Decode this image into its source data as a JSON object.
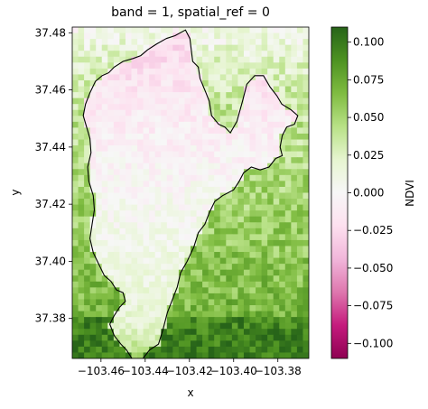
{
  "chart_data": {
    "type": "heatmap",
    "title": "band = 1, spatial_ref = 0",
    "xlabel": "x",
    "ylabel": "y",
    "xlim": [
      -103.473,
      -103.366
    ],
    "ylim": [
      37.366,
      37.482
    ],
    "x_ticks": [
      -103.46,
      -103.44,
      -103.42,
      -103.4,
      -103.38
    ],
    "x_tick_labels": [
      "−103.46",
      "−103.44",
      "−103.42",
      "−103.40",
      "−103.38"
    ],
    "y_ticks": [
      37.38,
      37.4,
      37.42,
      37.44,
      37.46,
      37.48
    ],
    "y_tick_labels": [
      "37.38",
      "37.40",
      "37.42",
      "37.44",
      "37.46",
      "37.48"
    ],
    "grid": false,
    "colormap": "PiYG",
    "colorbar": {
      "label": "NDVI",
      "min": -0.11,
      "max": 0.11,
      "ticks": [
        0.1,
        0.075,
        0.05,
        0.025,
        0.0,
        -0.025,
        -0.05,
        -0.075,
        -0.1
      ],
      "tick_labels": [
        "0.100",
        "0.075",
        "0.050",
        "0.025",
        "0.000",
        "−0.025",
        "−0.050",
        "−0.075",
        "−0.100"
      ]
    },
    "field_description": "NDVI raster: pink (about −0.02 to −0.05) inside the northern outlined area, near zero toward its southern half, green (about 0.03 to 0.09) outside the outline and strongest along the southern edge",
    "boundary_outline": {
      "color": "#000000",
      "points": [
        [
          -103.4305,
          37.478
        ],
        [
          -103.4265,
          37.479
        ],
        [
          -103.4218,
          37.481
        ],
        [
          -103.4198,
          37.478
        ],
        [
          -103.4185,
          37.47
        ],
        [
          -103.416,
          37.468
        ],
        [
          -103.4152,
          37.464
        ],
        [
          -103.4125,
          37.459
        ],
        [
          -103.411,
          37.456
        ],
        [
          -103.41,
          37.451
        ],
        [
          -103.4068,
          37.448
        ],
        [
          -103.404,
          37.447
        ],
        [
          -103.4015,
          37.445
        ],
        [
          -103.3985,
          37.449
        ],
        [
          -103.396,
          37.456
        ],
        [
          -103.394,
          37.462
        ],
        [
          -103.3905,
          37.465
        ],
        [
          -103.3865,
          37.465
        ],
        [
          -103.3835,
          37.461
        ],
        [
          -103.3805,
          37.458
        ],
        [
          -103.3782,
          37.455
        ],
        [
          -103.374,
          37.453
        ],
        [
          -103.371,
          37.451
        ],
        [
          -103.3725,
          37.448
        ],
        [
          -103.376,
          37.447
        ],
        [
          -103.378,
          37.444
        ],
        [
          -103.379,
          37.44
        ],
        [
          -103.378,
          37.437
        ],
        [
          -103.381,
          37.436
        ],
        [
          -103.384,
          37.433
        ],
        [
          -103.388,
          37.432
        ],
        [
          -103.392,
          37.433
        ],
        [
          -103.3955,
          37.431
        ],
        [
          -103.3975,
          37.428
        ],
        [
          -103.4,
          37.425
        ],
        [
          -103.405,
          37.423
        ],
        [
          -103.4085,
          37.421
        ],
        [
          -103.411,
          37.417
        ],
        [
          -103.413,
          37.413
        ],
        [
          -103.416,
          37.41
        ],
        [
          -103.418,
          37.405
        ],
        [
          -103.421,
          37.4
        ],
        [
          -103.424,
          37.396
        ],
        [
          -103.4255,
          37.391
        ],
        [
          -103.428,
          37.386
        ],
        [
          -103.43,
          37.382
        ],
        [
          -103.432,
          37.376
        ],
        [
          -103.434,
          37.371
        ],
        [
          -103.438,
          37.369
        ],
        [
          -103.441,
          37.366
        ],
        [
          -103.446,
          37.366
        ],
        [
          -103.4485,
          37.369
        ],
        [
          -103.451,
          37.371
        ],
        [
          -103.454,
          37.374
        ],
        [
          -103.456,
          37.378
        ],
        [
          -103.454,
          37.381
        ],
        [
          -103.4515,
          37.384
        ],
        [
          -103.449,
          37.386
        ],
        [
          -103.45,
          37.389
        ],
        [
          -103.453,
          37.39
        ],
        [
          -103.4555,
          37.393
        ],
        [
          -103.4585,
          37.395
        ],
        [
          -103.461,
          37.399
        ],
        [
          -103.4635,
          37.403
        ],
        [
          -103.465,
          37.408
        ],
        [
          -103.464,
          37.413
        ],
        [
          -103.463,
          37.418
        ],
        [
          -103.4635,
          37.423
        ],
        [
          -103.4655,
          37.428
        ],
        [
          -103.466,
          37.433
        ],
        [
          -103.4645,
          37.438
        ],
        [
          -103.465,
          37.443
        ],
        [
          -103.4665,
          37.447
        ],
        [
          -103.468,
          37.451
        ],
        [
          -103.467,
          37.455
        ],
        [
          -103.465,
          37.459
        ],
        [
          -103.4625,
          37.463
        ],
        [
          -103.4595,
          37.465
        ],
        [
          -103.4565,
          37.466
        ],
        [
          -103.454,
          37.468
        ],
        [
          -103.45,
          37.47
        ],
        [
          -103.4455,
          37.471
        ],
        [
          -103.442,
          37.472
        ],
        [
          -103.439,
          37.474
        ],
        [
          -103.435,
          37.476
        ],
        [
          -103.4305,
          37.478
        ]
      ]
    }
  }
}
